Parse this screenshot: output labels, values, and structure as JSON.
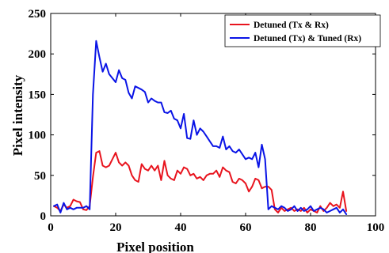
{
  "chart_data": {
    "type": "line",
    "xlabel": "Pixel position",
    "ylabel": "Pixel intensity",
    "xlim": [
      0,
      100
    ],
    "ylim": [
      0,
      250
    ],
    "xticks": [
      "0",
      "20",
      "40",
      "60",
      "80",
      "100"
    ],
    "yticks": [
      "0",
      "50",
      "100",
      "150",
      "200",
      "250"
    ],
    "grid": false,
    "legend_position": "top-right",
    "series": [
      {
        "name": "Detuned (Tx & Rx)",
        "color": "#e8141e",
        "x": [
          1,
          2,
          3,
          4,
          5,
          6,
          7,
          8,
          9,
          10,
          11,
          12,
          13,
          14,
          15,
          16,
          17,
          18,
          19,
          20,
          21,
          22,
          23,
          24,
          25,
          26,
          27,
          28,
          29,
          30,
          31,
          32,
          33,
          34,
          35,
          36,
          37,
          38,
          39,
          40,
          41,
          42,
          43,
          44,
          45,
          46,
          47,
          48,
          49,
          50,
          51,
          52,
          53,
          54,
          55,
          56,
          57,
          58,
          59,
          60,
          61,
          62,
          63,
          64,
          65,
          66,
          67,
          68,
          69,
          70,
          71,
          72,
          73,
          74,
          75,
          76,
          77,
          78,
          79,
          80,
          81,
          82,
          83,
          84,
          85,
          86,
          87,
          88,
          89,
          90,
          91
        ],
        "y": [
          12,
          10,
          6,
          14,
          10,
          12,
          20,
          18,
          17,
          8,
          7,
          12,
          48,
          78,
          80,
          62,
          60,
          62,
          70,
          78,
          66,
          62,
          66,
          62,
          50,
          44,
          42,
          64,
          58,
          56,
          62,
          56,
          62,
          44,
          68,
          50,
          46,
          44,
          56,
          52,
          60,
          58,
          50,
          52,
          46,
          48,
          44,
          50,
          52,
          52,
          56,
          48,
          60,
          56,
          54,
          42,
          40,
          46,
          44,
          40,
          30,
          36,
          46,
          44,
          34,
          36,
          36,
          32,
          8,
          4,
          10,
          6,
          8,
          10,
          6,
          8,
          6,
          10,
          4,
          8,
          6,
          4,
          12,
          6,
          10,
          16,
          12,
          14,
          10,
          30,
          6
        ]
      },
      {
        "name": "Detuned (Tx) & Tuned (Rx)",
        "color": "#0a14e6",
        "x": [
          1,
          2,
          3,
          4,
          5,
          6,
          7,
          8,
          9,
          10,
          11,
          12,
          13,
          14,
          15,
          16,
          17,
          18,
          19,
          20,
          21,
          22,
          23,
          24,
          25,
          26,
          27,
          28,
          29,
          30,
          31,
          32,
          33,
          34,
          35,
          36,
          37,
          38,
          39,
          40,
          41,
          42,
          43,
          44,
          45,
          46,
          47,
          48,
          49,
          50,
          51,
          52,
          53,
          54,
          55,
          56,
          57,
          58,
          59,
          60,
          61,
          62,
          63,
          64,
          65,
          66,
          67,
          68,
          69,
          70,
          71,
          72,
          73,
          74,
          75,
          76,
          77,
          78,
          79,
          80,
          81,
          82,
          83,
          84,
          85,
          86,
          87,
          88,
          89,
          90,
          91
        ],
        "y": [
          12,
          14,
          4,
          16,
          8,
          10,
          8,
          10,
          10,
          10,
          12,
          8,
          150,
          216,
          196,
          178,
          188,
          175,
          170,
          165,
          180,
          170,
          168,
          152,
          145,
          160,
          158,
          156,
          153,
          140,
          145,
          142,
          140,
          140,
          128,
          127,
          130,
          120,
          118,
          108,
          126,
          96,
          95,
          118,
          100,
          108,
          104,
          98,
          92,
          86,
          86,
          84,
          98,
          82,
          86,
          80,
          78,
          82,
          76,
          70,
          72,
          70,
          78,
          60,
          88,
          70,
          8,
          12,
          10,
          8,
          12,
          10,
          6,
          8,
          12,
          6,
          10,
          6,
          8,
          12,
          6,
          8,
          10,
          8,
          4,
          6,
          8,
          10,
          4,
          8,
          2
        ]
      }
    ]
  }
}
